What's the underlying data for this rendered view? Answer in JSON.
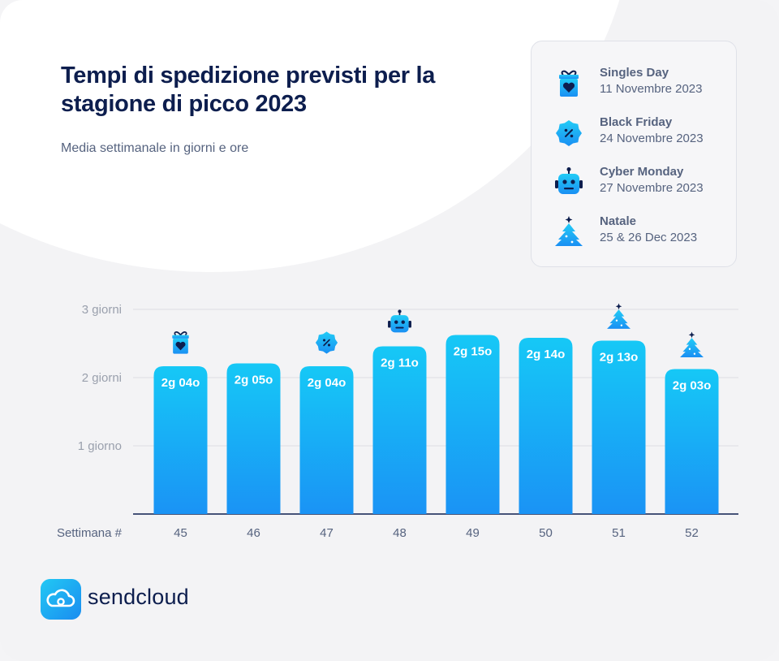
{
  "title": "Tempi di spedizione previsti per la stagione di picco 2023",
  "subtitle": "Media settimanale in giorni e ore",
  "brand": {
    "name": "sendcloud"
  },
  "colors": {
    "bar_top": "#16c8f6",
    "bar_bottom": "#1a93f5",
    "title": "#0d1e4e",
    "text": "#56637f",
    "icon_dark": "#0d1e4e"
  },
  "legend": {
    "items": [
      {
        "icon": "gift-icon",
        "name": "Singles Day",
        "date": "11 Novembre 2023"
      },
      {
        "icon": "badge-percent-icon",
        "name": "Black Friday",
        "date": "24 Novembre 2023"
      },
      {
        "icon": "robot-icon",
        "name": "Cyber Monday",
        "date": "27 Novembre 2023"
      },
      {
        "icon": "tree-icon",
        "name": "Natale",
        "date": "25 & 26 Dec 2023"
      }
    ]
  },
  "chart_data": {
    "type": "bar",
    "title": "Tempi di spedizione previsti per la stagione di picco 2023",
    "subtitle": "Media settimanale in giorni e ore",
    "xlabel": "Settimana #",
    "ylabel": "",
    "unit": "giorni",
    "ylim": [
      0,
      3
    ],
    "yticks": [
      {
        "value": 1,
        "label": "1 giorno"
      },
      {
        "value": 2,
        "label": "2 giorni"
      },
      {
        "value": 3,
        "label": "3 giorni"
      }
    ],
    "grid": true,
    "categories": [
      "45",
      "46",
      "47",
      "48",
      "49",
      "50",
      "51",
      "52"
    ],
    "values": [
      2.167,
      2.208,
      2.167,
      2.458,
      2.625,
      2.583,
      2.542,
      2.125
    ],
    "data_labels": [
      "2g 04o",
      "2g 05o",
      "2g 04o",
      "2g 11o",
      "2g 15o",
      "2g 14o",
      "2g 13o",
      "2g 03o"
    ],
    "bar_icons": [
      "gift-icon",
      "",
      "badge-percent-icon",
      "robot-icon",
      "",
      "",
      "tree-icon",
      "tree-icon"
    ]
  }
}
